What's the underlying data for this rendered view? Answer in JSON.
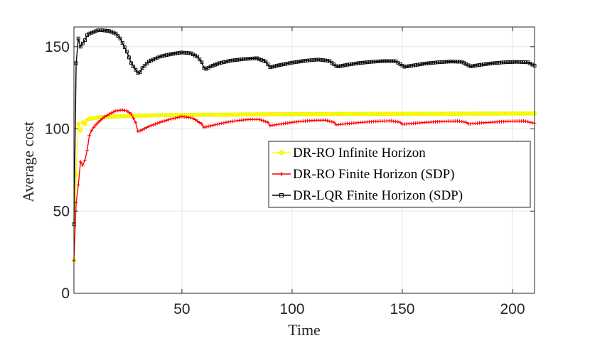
{
  "chart_data": {
    "type": "line",
    "title": "",
    "xlabel": "Time",
    "ylabel": "Average cost",
    "xlim": [
      1,
      210
    ],
    "ylim": [
      0,
      162
    ],
    "xticks": [
      50,
      100,
      150,
      200
    ],
    "yticks": [
      0,
      50,
      100,
      150
    ],
    "grid": true,
    "legend_position": "center-right",
    "series": [
      {
        "name": "DR-RO Infinite Horizon",
        "color": "#ffff00",
        "marker": "circle",
        "x": [
          1,
          2,
          3,
          4,
          5,
          6,
          7,
          8,
          10,
          12,
          15,
          20,
          25,
          30,
          40,
          50,
          60,
          80,
          100,
          120,
          150,
          180,
          210
        ],
        "y": [
          20,
          72,
          103,
          99,
          104,
          103,
          105.5,
          106,
          106.5,
          107,
          107.3,
          107.6,
          107.9,
          108.1,
          108.3,
          108.5,
          108.6,
          108.8,
          109,
          109.1,
          109.2,
          109.3,
          109.4
        ]
      },
      {
        "name": "DR-RO Finite Horizon (SDP)",
        "color": "#ff0000",
        "marker": "plus",
        "x": [
          1,
          2,
          3,
          4,
          5,
          6,
          7,
          8,
          9,
          10,
          12,
          14,
          17,
          20,
          23,
          25,
          27,
          29,
          30,
          31,
          35,
          40,
          45,
          50,
          55,
          59,
          60,
          61,
          65,
          70,
          75,
          80,
          85,
          89,
          90,
          91,
          95,
          100,
          105,
          110,
          115,
          119,
          120,
          121,
          125,
          130,
          135,
          140,
          145,
          149,
          150,
          151,
          155,
          160,
          165,
          170,
          175,
          179,
          180,
          181,
          185,
          190,
          195,
          200,
          205,
          210
        ],
        "y": [
          20,
          55,
          66,
          80,
          78,
          81,
          87,
          96,
          99,
          101,
          104,
          106.5,
          109,
          111,
          111.5,
          111,
          109,
          104,
          98.5,
          98.8,
          101.5,
          104,
          106,
          107.5,
          106.5,
          103,
          101,
          101.2,
          102.5,
          104,
          105,
          105.7,
          105.8,
          104,
          102,
          102.2,
          103,
          104,
          104.7,
          105.2,
          105.3,
          104,
          102.5,
          102.6,
          103.2,
          103.8,
          104.3,
          104.7,
          104.9,
          104,
          102.8,
          102.9,
          103.4,
          103.9,
          104.3,
          104.6,
          104.8,
          104,
          103,
          103.1,
          103.6,
          104,
          104.4,
          104.7,
          104.8,
          103.5
        ]
      },
      {
        "name": "DR-LQR Finite Horizon (SDP)",
        "color": "#000000",
        "marker": "square",
        "x": [
          1,
          2,
          3,
          4,
          5,
          6,
          7,
          8,
          10,
          12,
          14,
          17,
          20,
          22,
          25,
          27,
          29,
          30,
          31,
          32,
          35,
          40,
          45,
          50,
          54,
          57,
          59,
          60,
          61,
          63,
          67,
          72,
          78,
          84,
          88,
          90,
          91,
          95,
          100,
          106,
          112,
          117,
          120,
          121,
          125,
          130,
          136,
          142,
          147,
          150,
          151,
          155,
          160,
          166,
          172,
          177,
          180,
          181,
          185,
          190,
          196,
          202,
          207,
          210
        ],
        "y": [
          42,
          140,
          155,
          150,
          152,
          154,
          157,
          158,
          159,
          160,
          160,
          159.5,
          158,
          155,
          147,
          140,
          136,
          134,
          134.5,
          137,
          141,
          144,
          145.5,
          146.5,
          146,
          144,
          140.5,
          137,
          136.5,
          138,
          140,
          141.5,
          142.5,
          143,
          141,
          137.5,
          137.8,
          139,
          140.3,
          141.5,
          142.2,
          141.3,
          138.2,
          138,
          139,
          140,
          140.8,
          141.3,
          141.2,
          138.5,
          137.8,
          138.6,
          139.7,
          140.5,
          141,
          140.8,
          138.7,
          138,
          138.9,
          139.8,
          140.5,
          140.8,
          140.5,
          138.4
        ]
      }
    ]
  }
}
